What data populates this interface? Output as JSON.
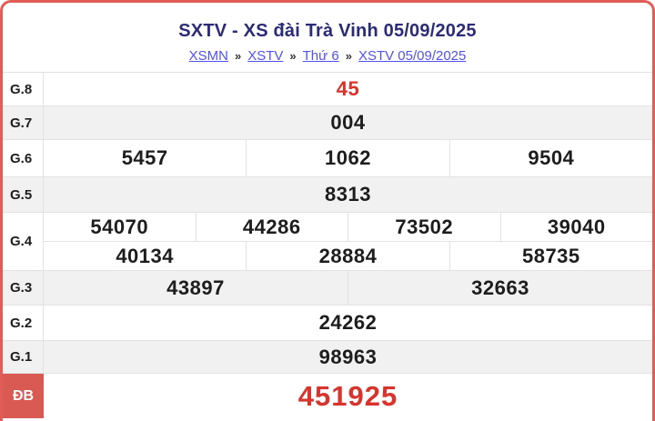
{
  "header": {
    "title": "SXTV - XS đài Trà Vinh 05/09/2025",
    "breadcrumb": {
      "separator": "»",
      "items": [
        "XSMN",
        "XSTV",
        "Thứ 6",
        "XSTV 05/09/2025"
      ]
    }
  },
  "results": {
    "g8": {
      "label": "G.8",
      "values": [
        "45"
      ]
    },
    "g7": {
      "label": "G.7",
      "values": [
        "004"
      ]
    },
    "g6": {
      "label": "G.6",
      "values": [
        "5457",
        "1062",
        "9504"
      ]
    },
    "g5": {
      "label": "G.5",
      "values": [
        "8313"
      ]
    },
    "g4": {
      "label": "G.4",
      "row1": [
        "54070",
        "44286",
        "73502",
        "39040"
      ],
      "row2": [
        "40134",
        "28884",
        "58735"
      ]
    },
    "g3": {
      "label": "G.3",
      "values": [
        "43897",
        "32663"
      ]
    },
    "g2": {
      "label": "G.2",
      "values": [
        "24262"
      ]
    },
    "g1": {
      "label": "G.1",
      "values": [
        "98963"
      ]
    },
    "db": {
      "label": "ĐB",
      "values": [
        "451925"
      ]
    }
  },
  "colors": {
    "card_border_red": "#e05d58",
    "special_label_bg": "#d95a53",
    "highlight_value_red": "#d6342c",
    "title_navy": "#2b2b78",
    "link_blue": "#5252ee",
    "alt_row_bg": "#f1f1f1"
  }
}
